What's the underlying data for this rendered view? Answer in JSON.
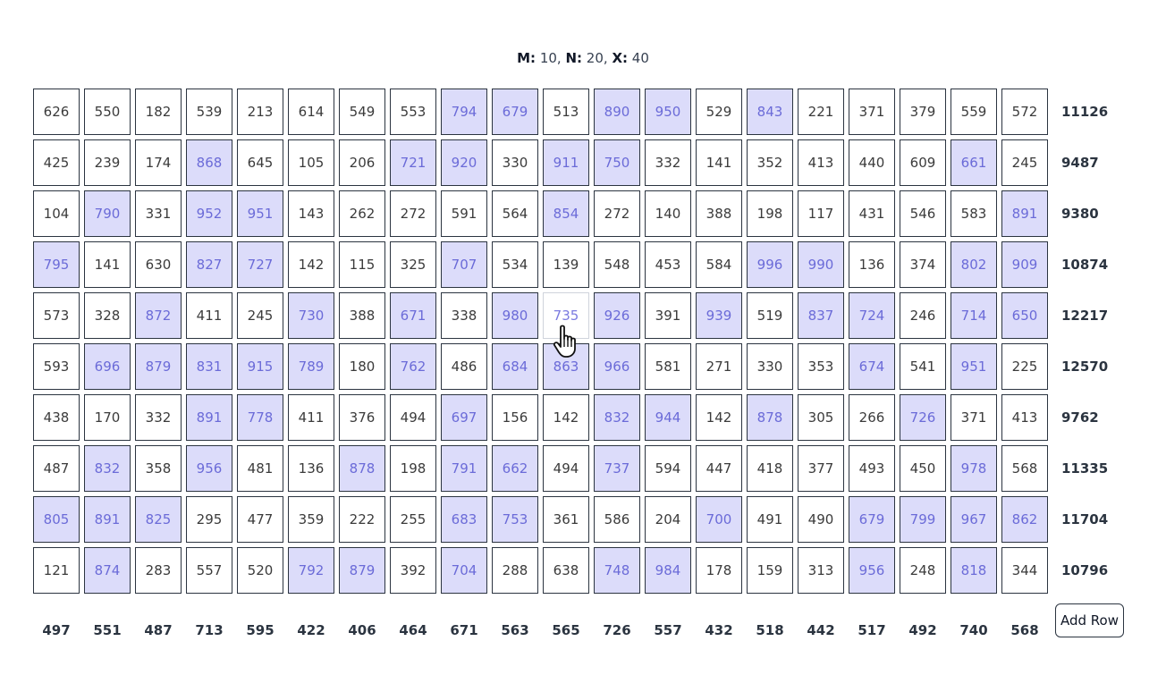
{
  "params": {
    "m_label": "M:",
    "m_value": " 10,",
    "n_label": "N:",
    "n_value": " 20,",
    "x_label": "X:",
    "x_value": " 40"
  },
  "grid": [
    [
      626,
      550,
      182,
      539,
      213,
      614,
      549,
      553,
      794,
      679,
      513,
      890,
      950,
      529,
      843,
      221,
      371,
      379,
      559,
      572
    ],
    [
      425,
      239,
      174,
      868,
      645,
      105,
      206,
      721,
      920,
      330,
      911,
      750,
      332,
      141,
      352,
      413,
      440,
      609,
      661,
      245
    ],
    [
      104,
      790,
      331,
      952,
      951,
      143,
      262,
      272,
      591,
      564,
      854,
      272,
      140,
      388,
      198,
      117,
      431,
      546,
      583,
      891
    ],
    [
      795,
      141,
      630,
      827,
      727,
      142,
      115,
      325,
      707,
      534,
      139,
      548,
      453,
      584,
      996,
      990,
      136,
      374,
      802,
      909
    ],
    [
      573,
      328,
      872,
      411,
      245,
      730,
      388,
      671,
      338,
      980,
      735,
      926,
      391,
      939,
      519,
      837,
      724,
      246,
      714,
      650
    ],
    [
      593,
      696,
      879,
      831,
      915,
      789,
      180,
      762,
      486,
      684,
      863,
      966,
      581,
      271,
      330,
      353,
      674,
      541,
      951,
      225
    ],
    [
      438,
      170,
      332,
      891,
      778,
      411,
      376,
      494,
      697,
      156,
      142,
      832,
      944,
      142,
      878,
      305,
      266,
      726,
      371,
      413
    ],
    [
      487,
      832,
      358,
      956,
      481,
      136,
      878,
      198,
      791,
      662,
      494,
      737,
      594,
      447,
      418,
      377,
      493,
      450,
      978,
      568
    ],
    [
      805,
      891,
      825,
      295,
      477,
      359,
      222,
      255,
      683,
      753,
      361,
      586,
      204,
      700,
      491,
      490,
      679,
      799,
      967,
      862
    ],
    [
      121,
      874,
      283,
      557,
      520,
      792,
      879,
      392,
      704,
      288,
      638,
      748,
      984,
      178,
      159,
      313,
      956,
      248,
      818,
      344
    ]
  ],
  "highlight_threshold": 650,
  "hovered_cell": {
    "row": 4,
    "col": 10
  },
  "row_sums": [
    "11126",
    "9487",
    "9380",
    "10874",
    "12217",
    "12570",
    "9762",
    "11335",
    "11704",
    "10796"
  ],
  "col_sums": [
    "497",
    "551",
    "487",
    "713",
    "595",
    "422",
    "406",
    "464",
    "671",
    "563",
    "565",
    "726",
    "557",
    "432",
    "518",
    "442",
    "517",
    "492",
    "740",
    "568"
  ],
  "add_row_label": "Add Row",
  "colors": {
    "highlight_bg": "#dcdcfa",
    "highlight_text": "#6b6bd8",
    "border": "#2b3440"
  }
}
